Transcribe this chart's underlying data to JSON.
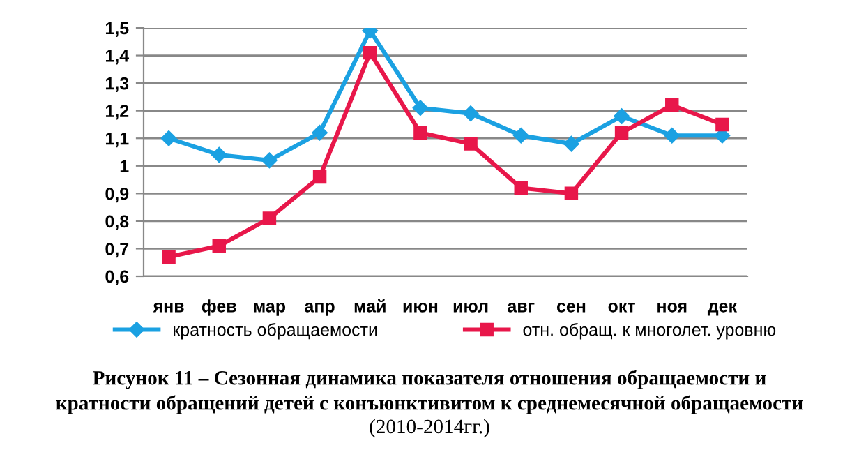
{
  "chart_data": {
    "type": "line",
    "categories": [
      "янв",
      "фев",
      "мар",
      "апр",
      "май",
      "июн",
      "июл",
      "авг",
      "сен",
      "окт",
      "ноя",
      "дек"
    ],
    "series": [
      {
        "name": "кратность обращаемости",
        "color": "#1ba1e2",
        "marker": "diamond",
        "values": [
          1.1,
          1.04,
          1.02,
          1.12,
          1.49,
          1.21,
          1.19,
          1.11,
          1.08,
          1.18,
          1.11,
          1.11
        ]
      },
      {
        "name": "отн. обращ. к многолет. уровню",
        "color": "#e8174a",
        "marker": "square",
        "values": [
          0.67,
          0.71,
          0.81,
          0.96,
          1.41,
          1.12,
          1.08,
          0.92,
          0.9,
          1.12,
          1.22,
          1.15
        ]
      }
    ],
    "ylim": [
      0.6,
      1.5
    ],
    "yticks": [
      {
        "value": 0.6,
        "label": "0,6"
      },
      {
        "value": 0.7,
        "label": "0,7"
      },
      {
        "value": 0.8,
        "label": "0,8"
      },
      {
        "value": 0.9,
        "label": "0,9"
      },
      {
        "value": 1,
        "label": "1"
      },
      {
        "value": 1.1,
        "label": "1,1"
      },
      {
        "value": 1.2,
        "label": "1,2"
      },
      {
        "value": 1.3,
        "label": "1,3"
      },
      {
        "value": 1.4,
        "label": "1,4"
      },
      {
        "value": 1.5,
        "label": "1,5"
      }
    ],
    "grid": "y",
    "legend": "bottom",
    "line_style": "solid",
    "annotations": [
      "Рисунок 11 – Сезонная динамика показателя отношения обращаемости и",
      "кратности обращений детей с конъюнктивитом к среднемесячной обращаемости",
      "(2010-2014гг.)"
    ]
  }
}
